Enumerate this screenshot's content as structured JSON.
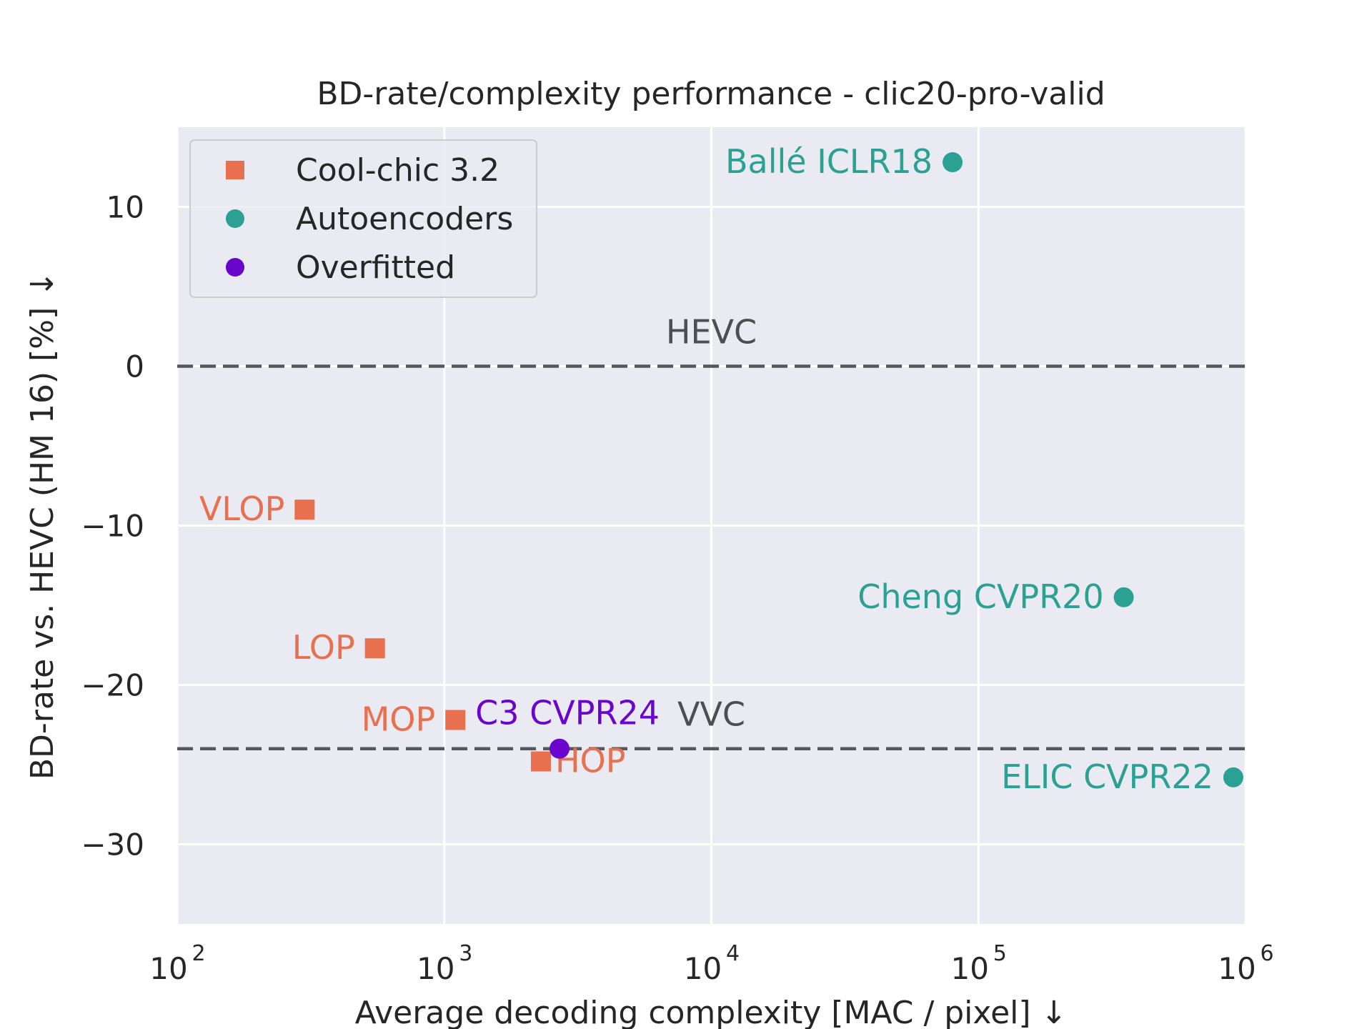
{
  "chart_data": {
    "type": "scatter",
    "title": "BD-rate/complexity performance - clic20-pro-valid",
    "xlabel": "Average decoding complexity [MAC / pixel] ↓",
    "ylabel": "BD-rate vs. HEVC (HM 16) [%] ↓",
    "xscale": "log",
    "xlim": [
      100,
      1000000
    ],
    "ylim": [
      -35,
      15
    ],
    "xticks": [
      {
        "value": 100,
        "base": "10",
        "exp": "2"
      },
      {
        "value": 1000,
        "base": "10",
        "exp": "3"
      },
      {
        "value": 10000,
        "base": "10",
        "exp": "4"
      },
      {
        "value": 100000,
        "base": "10",
        "exp": "5"
      },
      {
        "value": 1000000,
        "base": "10",
        "exp": "6"
      }
    ],
    "yticks": [
      {
        "value": 10,
        "label": "10"
      },
      {
        "value": 0,
        "label": "0"
      },
      {
        "value": -10,
        "label": "−10"
      },
      {
        "value": -20,
        "label": "−20"
      },
      {
        "value": -30,
        "label": "−30"
      }
    ],
    "grid": true,
    "legend_position": "top-left",
    "series": [
      {
        "name": "Cool-chic 3.2",
        "marker": "square",
        "color": "#e8704f",
        "points": [
          {
            "label": "VLOP",
            "x": 300,
            "y": -9,
            "label_side": "left"
          },
          {
            "label": "LOP",
            "x": 550,
            "y": -17.7,
            "label_side": "left"
          },
          {
            "label": "MOP",
            "x": 1100,
            "y": -22.2,
            "label_side": "left"
          },
          {
            "label": "HOP",
            "x": 2300,
            "y": -24.8,
            "label_side": "right"
          }
        ]
      },
      {
        "name": "Autoencoders",
        "marker": "circle",
        "color": "#2aa193",
        "points": [
          {
            "label": "Ballé ICLR18",
            "x": 80000,
            "y": 12.8,
            "label_side": "left"
          },
          {
            "label": "Cheng CVPR20",
            "x": 350000,
            "y": -14.5,
            "label_side": "left"
          },
          {
            "label": "ELIC CVPR22",
            "x": 900000,
            "y": -25.8,
            "label_side": "left"
          }
        ]
      },
      {
        "name": "Overfitted",
        "marker": "circle",
        "color": "#6a05cc",
        "points": [
          {
            "label": "C3 CVPR24",
            "x": 2700,
            "y": -24,
            "label_side": "above-left"
          }
        ]
      }
    ],
    "reference_lines": [
      {
        "label": "HEVC",
        "y": 0
      },
      {
        "label": "VVC",
        "y": -24
      }
    ]
  }
}
